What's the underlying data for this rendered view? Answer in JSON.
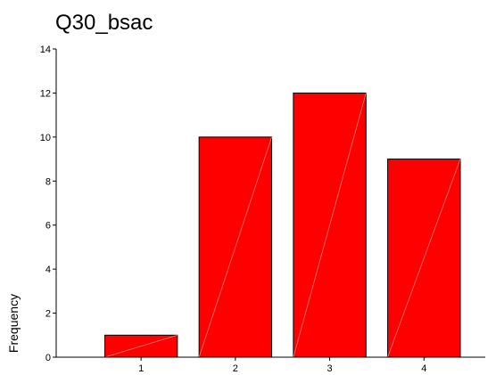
{
  "chart_data": {
    "type": "bar",
    "title": "Q30_bsac",
    "xlabel": "",
    "ylabel": "Frequency",
    "categories": [
      "1",
      "2",
      "3",
      "4"
    ],
    "values": [
      1,
      10,
      12,
      9
    ],
    "ylim": [
      0,
      14
    ],
    "yticks": [
      0,
      2,
      4,
      6,
      8,
      10,
      12,
      14
    ],
    "grid": false,
    "bar_color": "#ff0000",
    "bar_stroke": "#000000"
  }
}
